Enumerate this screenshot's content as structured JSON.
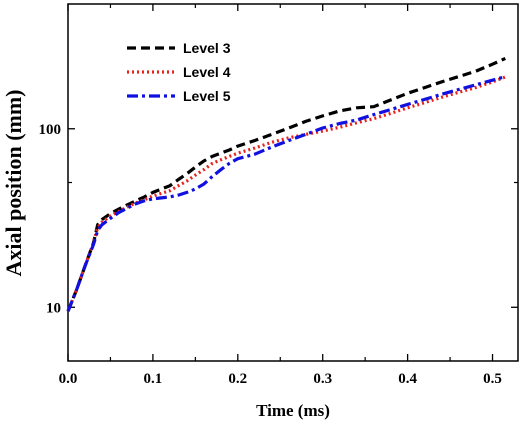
{
  "chart_data": {
    "type": "line",
    "title": "",
    "xlabel": "Time (ms)",
    "ylabel": "Axial position (mm)",
    "x_scale": "linear",
    "y_scale": "log",
    "xlim": [
      0.0,
      0.53
    ],
    "ylim": [
      5,
      500
    ],
    "x_ticks": [
      0.0,
      0.1,
      0.2,
      0.3,
      0.4,
      0.5
    ],
    "x_tick_labels": [
      "0.0",
      "0.1",
      "0.2",
      "0.3",
      "0.4",
      "0.5"
    ],
    "y_ticks": [
      10,
      100
    ],
    "y_tick_labels": [
      "10",
      "100"
    ],
    "grid": false,
    "legend_position": "top-left",
    "series": [
      {
        "name": "Level 3",
        "color": "#000000",
        "dash": "dashed",
        "x": [
          0.0,
          0.01,
          0.02,
          0.03,
          0.035,
          0.04,
          0.05,
          0.06,
          0.07,
          0.08,
          0.09,
          0.1,
          0.11,
          0.12,
          0.13,
          0.14,
          0.15,
          0.16,
          0.17,
          0.18,
          0.19,
          0.2,
          0.22,
          0.24,
          0.26,
          0.28,
          0.3,
          0.32,
          0.34,
          0.36,
          0.38,
          0.4,
          0.42,
          0.44,
          0.46,
          0.48,
          0.5,
          0.515
        ],
        "y": [
          9.5,
          12.5,
          17,
          23,
          29,
          31,
          33.5,
          35.5,
          37.5,
          39.5,
          41.5,
          44,
          46,
          48,
          52,
          56,
          61,
          66,
          70,
          73,
          76,
          80,
          86,
          93,
          101,
          110,
          118,
          126,
          131,
          133,
          145,
          158,
          170,
          183,
          196,
          210,
          230,
          248
        ]
      },
      {
        "name": "Level 4",
        "color": "#e8221b",
        "dash": "dotted",
        "x": [
          0.0,
          0.01,
          0.02,
          0.03,
          0.035,
          0.04,
          0.05,
          0.06,
          0.07,
          0.08,
          0.09,
          0.1,
          0.11,
          0.12,
          0.13,
          0.14,
          0.15,
          0.16,
          0.17,
          0.18,
          0.19,
          0.2,
          0.22,
          0.24,
          0.26,
          0.28,
          0.3,
          0.32,
          0.34,
          0.36,
          0.38,
          0.4,
          0.42,
          0.44,
          0.46,
          0.48,
          0.5,
          0.515
        ],
        "y": [
          9.5,
          12.5,
          17,
          23,
          28,
          30,
          32.5,
          34.5,
          36.5,
          38.5,
          40,
          42,
          43.5,
          45,
          48,
          51,
          55,
          59,
          64,
          67,
          70,
          73,
          78,
          84,
          89,
          93,
          97,
          102,
          108,
          114,
          122,
          131,
          140,
          150,
          160,
          170,
          183,
          195
        ]
      },
      {
        "name": "Level 5",
        "color": "#1010e0",
        "dash": "dashdot",
        "x": [
          0.0,
          0.01,
          0.02,
          0.03,
          0.035,
          0.04,
          0.05,
          0.06,
          0.07,
          0.08,
          0.09,
          0.1,
          0.11,
          0.12,
          0.13,
          0.14,
          0.15,
          0.16,
          0.17,
          0.18,
          0.19,
          0.2,
          0.22,
          0.24,
          0.26,
          0.28,
          0.3,
          0.32,
          0.34,
          0.36,
          0.38,
          0.4,
          0.42,
          0.44,
          0.46,
          0.48,
          0.5,
          0.515
        ],
        "y": [
          9.5,
          12.5,
          17,
          22.5,
          27,
          29,
          31.5,
          34,
          36,
          38,
          39.5,
          40.5,
          41,
          41.5,
          42.5,
          44,
          46,
          49,
          54,
          59,
          64,
          68,
          72,
          79,
          86,
          93,
          101,
          107,
          112,
          120,
          128,
          137,
          146,
          156,
          166,
          176,
          187,
          196
        ]
      }
    ]
  }
}
